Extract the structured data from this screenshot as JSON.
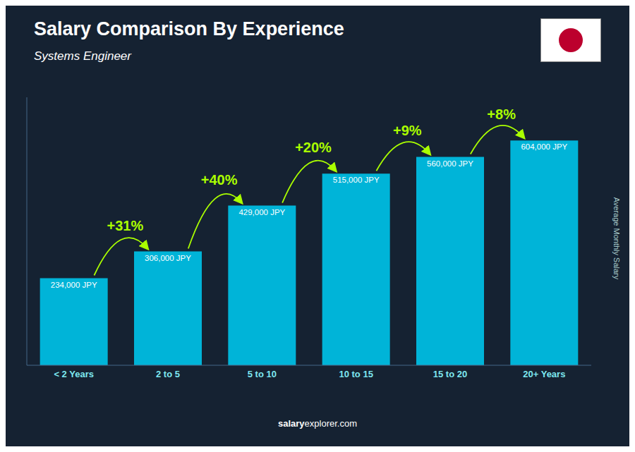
{
  "chart_data": {
    "type": "bar",
    "title": "Salary Comparison By Experience",
    "subtitle": "Systems Engineer",
    "ylabel": "Average Monthly Salary",
    "categories": [
      "< 2 Years",
      "2 to 5",
      "5 to 10",
      "10 to 15",
      "15 to 20",
      "20+ Years"
    ],
    "values": [
      234000,
      306000,
      429000,
      515000,
      560000,
      604000
    ],
    "value_labels": [
      "234,000 JPY",
      "306,000 JPY",
      "429,000 JPY",
      "515,000 JPY",
      "560,000 JPY",
      "604,000 JPY"
    ],
    "data_labels": true,
    "annotations": [
      "+31%",
      "+40%",
      "+20%",
      "+9%",
      "+8%"
    ],
    "footer": [
      "salary",
      "explorer.com"
    ],
    "color": "#00b4d8",
    "ylim": [
      0,
      720000
    ],
    "yticks": [],
    "tick_labels": "x",
    "grid": false
  }
}
